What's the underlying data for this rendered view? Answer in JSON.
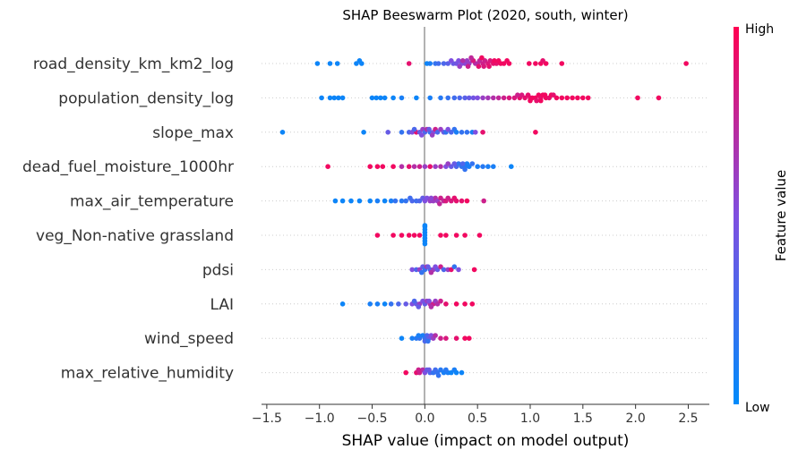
{
  "chart_data": {
    "type": "scatter",
    "title": "SHAP Beeswarm Plot (2020, south, winter)",
    "xlabel": "SHAP value (impact on model output)",
    "xlim": [
      -1.55,
      2.7
    ],
    "xticks": [
      -1.5,
      -1.0,
      -0.5,
      0.0,
      0.5,
      1.0,
      1.5,
      2.0,
      2.5
    ],
    "xtick_labels": [
      "−1.5",
      "−1.0",
      "−0.5",
      "0.0",
      "0.5",
      "1.0",
      "1.5",
      "2.0",
      "2.5"
    ],
    "colorbar": {
      "label": "Feature value",
      "high_label": "High",
      "low_label": "Low",
      "low_color": "#008bfb",
      "high_color": "#ff0052"
    },
    "features": [
      {
        "name": "road_density_km_km2_log",
        "points": [
          [
            -1.02,
            0.05
          ],
          [
            -0.9,
            0.05
          ],
          [
            -0.83,
            0.05
          ],
          [
            -0.65,
            0.05
          ],
          [
            -0.62,
            0.05
          ],
          [
            -0.6,
            0.05
          ],
          [
            -0.15,
            0.9
          ],
          [
            0.02,
            0.05
          ],
          [
            0.05,
            0.1
          ],
          [
            0.1,
            0.2
          ],
          [
            0.13,
            0.25
          ],
          [
            0.18,
            0.3
          ],
          [
            0.22,
            0.35
          ],
          [
            0.27,
            0.4
          ],
          [
            0.3,
            0.45
          ],
          [
            0.32,
            0.5
          ],
          [
            0.35,
            0.5
          ],
          [
            0.38,
            0.55
          ],
          [
            0.4,
            0.6
          ],
          [
            0.42,
            0.6
          ],
          [
            0.45,
            0.65
          ],
          [
            0.48,
            0.7
          ],
          [
            0.5,
            0.7
          ],
          [
            0.52,
            0.75
          ],
          [
            0.55,
            0.8
          ],
          [
            0.57,
            0.8
          ],
          [
            0.6,
            0.85
          ],
          [
            0.62,
            0.85
          ],
          [
            0.65,
            0.9
          ],
          [
            0.68,
            0.9
          ],
          [
            0.7,
            0.95
          ],
          [
            0.72,
            0.95
          ],
          [
            0.75,
            0.95
          ],
          [
            0.78,
            0.95
          ],
          [
            0.8,
            0.95
          ],
          [
            0.36,
            0.7
          ],
          [
            0.41,
            0.8
          ],
          [
            0.46,
            0.85
          ],
          [
            0.51,
            0.9
          ],
          [
            0.56,
            0.85
          ],
          [
            0.61,
            0.9
          ],
          [
            0.25,
            0.5
          ],
          [
            0.33,
            0.6
          ],
          [
            0.44,
            0.75
          ],
          [
            0.54,
            0.95
          ],
          [
            0.66,
            0.95
          ],
          [
            0.99,
            0.95
          ],
          [
            1.05,
            0.95
          ],
          [
            1.1,
            0.95
          ],
          [
            1.12,
            0.9
          ],
          [
            1.15,
            0.95
          ],
          [
            1.3,
            0.95
          ],
          [
            2.48,
            0.95
          ]
        ]
      },
      {
        "name": "population_density_log",
        "points": [
          [
            -0.98,
            0.05
          ],
          [
            -0.9,
            0.05
          ],
          [
            -0.86,
            0.05
          ],
          [
            -0.82,
            0.05
          ],
          [
            -0.78,
            0.05
          ],
          [
            -0.5,
            0.05
          ],
          [
            -0.46,
            0.05
          ],
          [
            -0.42,
            0.05
          ],
          [
            -0.38,
            0.05
          ],
          [
            -0.3,
            0.05
          ],
          [
            -0.22,
            0.1
          ],
          [
            -0.08,
            0.05
          ],
          [
            0.05,
            0.1
          ],
          [
            0.15,
            0.15
          ],
          [
            0.22,
            0.2
          ],
          [
            0.28,
            0.25
          ],
          [
            0.33,
            0.3
          ],
          [
            0.38,
            0.35
          ],
          [
            0.42,
            0.4
          ],
          [
            0.46,
            0.45
          ],
          [
            0.5,
            0.5
          ],
          [
            0.55,
            0.6
          ],
          [
            0.6,
            0.65
          ],
          [
            0.65,
            0.7
          ],
          [
            0.7,
            0.75
          ],
          [
            0.75,
            0.8
          ],
          [
            0.8,
            0.85
          ],
          [
            0.85,
            0.85
          ],
          [
            0.9,
            0.9
          ],
          [
            0.95,
            0.9
          ],
          [
            1.0,
            0.9
          ],
          [
            1.02,
            0.95
          ],
          [
            1.05,
            0.95
          ],
          [
            1.08,
            0.95
          ],
          [
            1.1,
            0.9
          ],
          [
            1.12,
            0.95
          ],
          [
            1.15,
            0.95
          ],
          [
            1.18,
            0.9
          ],
          [
            1.2,
            0.95
          ],
          [
            1.25,
            0.95
          ],
          [
            1.3,
            0.95
          ],
          [
            1.35,
            0.95
          ],
          [
            1.4,
            0.95
          ],
          [
            1.45,
            0.95
          ],
          [
            1.5,
            0.95
          ],
          [
            1.55,
            0.95
          ],
          [
            0.92,
            0.85
          ],
          [
            0.98,
            0.9
          ],
          [
            1.06,
            0.9
          ],
          [
            1.14,
            0.95
          ],
          [
            1.22,
            0.9
          ],
          [
            0.88,
            0.8
          ],
          [
            1.0,
            0.95
          ],
          [
            1.1,
            0.95
          ],
          [
            2.02,
            0.95
          ],
          [
            2.22,
            0.95
          ]
        ]
      },
      {
        "name": "slope_max",
        "points": [
          [
            -1.35,
            0.05
          ],
          [
            -0.58,
            0.05
          ],
          [
            -0.35,
            0.4
          ],
          [
            -0.22,
            0.2
          ],
          [
            -0.15,
            0.3
          ],
          [
            -0.12,
            0.5
          ],
          [
            -0.08,
            0.9
          ],
          [
            -0.05,
            0.4
          ],
          [
            -0.02,
            0.6
          ],
          [
            0.0,
            0.3
          ],
          [
            0.02,
            0.7
          ],
          [
            0.05,
            0.2
          ],
          [
            0.08,
            0.5
          ],
          [
            0.1,
            0.8
          ],
          [
            0.12,
            0.3
          ],
          [
            0.15,
            0.6
          ],
          [
            0.18,
            0.4
          ],
          [
            0.2,
            0.2
          ],
          [
            0.22,
            0.5
          ],
          [
            0.25,
            0.3
          ],
          [
            0.28,
            0.2
          ],
          [
            0.3,
            0.1
          ],
          [
            0.35,
            0.2
          ],
          [
            0.4,
            0.2
          ],
          [
            0.45,
            0.1
          ],
          [
            0.48,
            0.5
          ],
          [
            0.55,
            0.9
          ],
          [
            1.05,
            0.95
          ],
          [
            -0.03,
            0.5
          ],
          [
            0.04,
            0.4
          ],
          [
            0.07,
            0.6
          ],
          [
            -0.1,
            0.3
          ]
        ]
      },
      {
        "name": "dead_fuel_moisture_1000hr",
        "points": [
          [
            -0.92,
            0.95
          ],
          [
            -0.52,
            0.95
          ],
          [
            -0.45,
            0.95
          ],
          [
            -0.4,
            0.95
          ],
          [
            -0.3,
            0.95
          ],
          [
            -0.22,
            0.7
          ],
          [
            -0.15,
            0.9
          ],
          [
            -0.1,
            0.7
          ],
          [
            -0.05,
            0.8
          ],
          [
            0.0,
            0.6
          ],
          [
            0.05,
            0.9
          ],
          [
            0.1,
            0.6
          ],
          [
            0.15,
            0.7
          ],
          [
            0.2,
            0.5
          ],
          [
            0.25,
            0.4
          ],
          [
            0.3,
            0.3
          ],
          [
            0.32,
            0.2
          ],
          [
            0.35,
            0.2
          ],
          [
            0.38,
            0.15
          ],
          [
            0.4,
            0.1
          ],
          [
            0.42,
            0.1
          ],
          [
            0.45,
            0.2
          ],
          [
            0.5,
            0.1
          ],
          [
            0.55,
            0.15
          ],
          [
            0.6,
            0.1
          ],
          [
            0.65,
            0.1
          ],
          [
            0.82,
            0.05
          ],
          [
            0.36,
            0.3
          ],
          [
            0.28,
            0.4
          ],
          [
            0.22,
            0.6
          ],
          [
            0.38,
            0.2
          ]
        ]
      },
      {
        "name": "max_air_temperature",
        "points": [
          [
            -0.85,
            0.05
          ],
          [
            -0.78,
            0.05
          ],
          [
            -0.7,
            0.05
          ],
          [
            -0.62,
            0.05
          ],
          [
            -0.52,
            0.05
          ],
          [
            -0.45,
            0.1
          ],
          [
            -0.38,
            0.05
          ],
          [
            -0.32,
            0.1
          ],
          [
            -0.28,
            0.2
          ],
          [
            -0.22,
            0.15
          ],
          [
            -0.18,
            0.2
          ],
          [
            -0.12,
            0.3
          ],
          [
            -0.08,
            0.25
          ],
          [
            -0.05,
            0.3
          ],
          [
            -0.02,
            0.4
          ],
          [
            0.0,
            0.5
          ],
          [
            0.02,
            0.5
          ],
          [
            0.05,
            0.6
          ],
          [
            0.08,
            0.6
          ],
          [
            0.1,
            0.7
          ],
          [
            0.12,
            0.6
          ],
          [
            0.15,
            0.8
          ],
          [
            0.18,
            0.75
          ],
          [
            0.2,
            0.85
          ],
          [
            0.22,
            0.8
          ],
          [
            0.25,
            0.85
          ],
          [
            0.28,
            0.9
          ],
          [
            0.3,
            0.9
          ],
          [
            0.35,
            0.9
          ],
          [
            0.4,
            0.95
          ],
          [
            0.56,
            0.8
          ],
          [
            -0.14,
            0.25
          ],
          [
            0.06,
            0.55
          ],
          [
            0.14,
            0.75
          ]
        ]
      },
      {
        "name": "veg_Non-native grassland",
        "points": [
          [
            -0.45,
            0.95
          ],
          [
            -0.3,
            0.95
          ],
          [
            -0.22,
            0.95
          ],
          [
            -0.15,
            0.95
          ],
          [
            -0.1,
            0.95
          ],
          [
            -0.05,
            0.95
          ],
          [
            0.0,
            0.05
          ],
          [
            0.0,
            0.05
          ],
          [
            0.0,
            0.05
          ],
          [
            0.0,
            0.05
          ],
          [
            0.0,
            0.05
          ],
          [
            0.0,
            0.05
          ],
          [
            0.0,
            0.05
          ],
          [
            0.0,
            0.05
          ],
          [
            0.15,
            0.95
          ],
          [
            0.2,
            0.95
          ],
          [
            0.3,
            0.95
          ],
          [
            0.38,
            0.95
          ],
          [
            0.52,
            0.95
          ]
        ]
      },
      {
        "name": "pdsi",
        "points": [
          [
            -0.12,
            0.5
          ],
          [
            -0.08,
            0.3
          ],
          [
            -0.05,
            0.6
          ],
          [
            -0.02,
            0.4
          ],
          [
            0.0,
            0.2
          ],
          [
            0.02,
            0.7
          ],
          [
            0.05,
            0.3
          ],
          [
            0.08,
            0.6
          ],
          [
            0.1,
            0.5
          ],
          [
            0.12,
            0.4
          ],
          [
            0.15,
            0.8
          ],
          [
            0.18,
            0.3
          ],
          [
            0.22,
            0.6
          ],
          [
            0.25,
            0.9
          ],
          [
            0.28,
            0.2
          ],
          [
            0.32,
            0.5
          ],
          [
            0.47,
            0.95
          ],
          [
            0.03,
            0.4
          ],
          [
            -0.03,
            0.2
          ],
          [
            0.06,
            0.7
          ]
        ]
      },
      {
        "name": "LAI",
        "points": [
          [
            -0.78,
            0.05
          ],
          [
            -0.52,
            0.1
          ],
          [
            -0.45,
            0.1
          ],
          [
            -0.38,
            0.05
          ],
          [
            -0.32,
            0.2
          ],
          [
            -0.25,
            0.3
          ],
          [
            -0.18,
            0.4
          ],
          [
            -0.12,
            0.5
          ],
          [
            -0.08,
            0.4
          ],
          [
            -0.05,
            0.6
          ],
          [
            -0.02,
            0.5
          ],
          [
            0.0,
            0.4
          ],
          [
            0.02,
            0.6
          ],
          [
            0.05,
            0.7
          ],
          [
            0.08,
            0.8
          ],
          [
            0.1,
            0.6
          ],
          [
            0.12,
            0.7
          ],
          [
            0.15,
            0.8
          ],
          [
            0.2,
            0.9
          ],
          [
            0.3,
            0.95
          ],
          [
            0.38,
            0.95
          ],
          [
            0.45,
            0.95
          ],
          [
            -0.1,
            0.3
          ],
          [
            0.04,
            0.5
          ],
          [
            -0.06,
            0.4
          ],
          [
            0.06,
            0.7
          ]
        ]
      },
      {
        "name": "wind_speed",
        "points": [
          [
            -0.22,
            0.05
          ],
          [
            -0.12,
            0.1
          ],
          [
            -0.08,
            0.15
          ],
          [
            -0.05,
            0.2
          ],
          [
            -0.02,
            0.1
          ],
          [
            0.0,
            0.2
          ],
          [
            0.02,
            0.3
          ],
          [
            0.04,
            0.4
          ],
          [
            0.06,
            0.5
          ],
          [
            0.08,
            0.6
          ],
          [
            0.1,
            0.7
          ],
          [
            0.15,
            0.8
          ],
          [
            0.2,
            0.85
          ],
          [
            0.3,
            0.9
          ],
          [
            0.38,
            0.95
          ],
          [
            0.42,
            0.95
          ],
          [
            -0.06,
            0.1
          ],
          [
            0.0,
            0.3
          ],
          [
            0.03,
            0.2
          ]
        ]
      },
      {
        "name": "max_relative_humidity",
        "points": [
          [
            -0.18,
            0.95
          ],
          [
            -0.08,
            0.9
          ],
          [
            -0.05,
            0.8
          ],
          [
            -0.02,
            0.7
          ],
          [
            0.0,
            0.5
          ],
          [
            0.02,
            0.4
          ],
          [
            0.05,
            0.3
          ],
          [
            0.08,
            0.2
          ],
          [
            0.1,
            0.25
          ],
          [
            0.12,
            0.2
          ],
          [
            0.15,
            0.15
          ],
          [
            0.18,
            0.1
          ],
          [
            0.22,
            0.1
          ],
          [
            0.25,
            0.05
          ],
          [
            0.28,
            0.1
          ],
          [
            0.3,
            0.05
          ],
          [
            0.35,
            0.05
          ],
          [
            -0.06,
            0.8
          ],
          [
            0.04,
            0.4
          ],
          [
            0.13,
            0.2
          ],
          [
            0.2,
            0.15
          ]
        ]
      }
    ]
  }
}
